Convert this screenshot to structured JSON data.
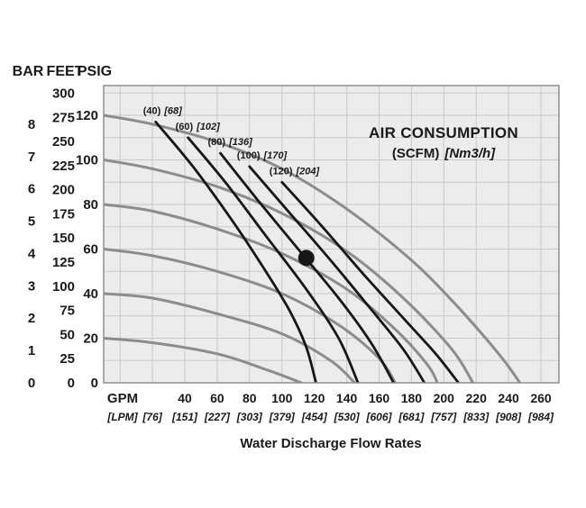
{
  "chart_data": {
    "type": "line",
    "title": "AIR CONSUMPTION",
    "subtitle_scfm": "(SCFM)",
    "subtitle_nm3h": "[Nm3/h]",
    "xlabel": "Water Discharge Flow Rates",
    "y_axes": {
      "headers": [
        "BAR",
        "FEET",
        "PSIG"
      ],
      "bar_ticks": [
        "8",
        "7",
        "6",
        "5",
        "4",
        "3",
        "2",
        "1",
        "0"
      ],
      "feet_ticks": [
        "300",
        "275",
        "250",
        "225",
        "200",
        "175",
        "150",
        "125",
        "100",
        "75",
        "50",
        "25",
        "0"
      ],
      "psig_ticks": [
        "120",
        "100",
        "80",
        "60",
        "40",
        "20",
        "0"
      ]
    },
    "x_axis": {
      "primary_unit": "GPM",
      "secondary_unit": "[LPM]",
      "gpm_ticks": [
        40,
        60,
        80,
        100,
        120,
        140,
        160,
        180,
        200,
        220,
        240,
        260
      ],
      "lpm_ticks": [
        "[76]",
        "[151]",
        "[227]",
        "[303]",
        "[379]",
        "[454]",
        "[530]",
        "[606]",
        "[681]",
        "[757]",
        "[833]",
        "[908]",
        "[984]"
      ],
      "lpm_tick_gpm_positions": [
        20,
        40,
        60,
        80,
        100,
        120,
        140,
        160,
        180,
        200,
        220,
        240,
        260
      ]
    },
    "grid": {
      "x_step_gpm": 20,
      "x_max_gpm": 260,
      "y_step_psig": 10,
      "y_max_psig": 130
    },
    "pump_curves": [
      {
        "points": [
          [
            -10,
            120
          ],
          [
            20,
            116
          ],
          [
            60,
            108
          ],
          [
            100,
            96
          ],
          [
            140,
            78
          ],
          [
            180,
            55
          ],
          [
            210,
            33
          ],
          [
            235,
            12
          ],
          [
            247,
            0
          ]
        ]
      },
      {
        "points": [
          [
            -10,
            100
          ],
          [
            20,
            96
          ],
          [
            60,
            88
          ],
          [
            100,
            76
          ],
          [
            140,
            59
          ],
          [
            175,
            38
          ],
          [
            205,
            15
          ],
          [
            218,
            0
          ]
        ]
      },
      {
        "points": [
          [
            -10,
            80
          ],
          [
            20,
            77
          ],
          [
            60,
            69
          ],
          [
            100,
            58
          ],
          [
            140,
            42
          ],
          [
            170,
            24
          ],
          [
            190,
            8
          ],
          [
            196,
            0
          ]
        ]
      },
      {
        "points": [
          [
            -10,
            60
          ],
          [
            20,
            57
          ],
          [
            60,
            50
          ],
          [
            100,
            40
          ],
          [
            135,
            26
          ],
          [
            160,
            11
          ],
          [
            170,
            0
          ]
        ]
      },
      {
        "points": [
          [
            -10,
            40
          ],
          [
            20,
            38
          ],
          [
            60,
            31
          ],
          [
            100,
            22
          ],
          [
            130,
            10
          ],
          [
            145,
            0
          ]
        ]
      },
      {
        "points": [
          [
            -10,
            20
          ],
          [
            20,
            18
          ],
          [
            60,
            13
          ],
          [
            90,
            6
          ],
          [
            112,
            0
          ]
        ]
      }
    ],
    "air_curves": [
      {
        "scfm": "(40)",
        "nm3h": "[68]",
        "points": [
          [
            22,
            117
          ],
          [
            45,
            97
          ],
          [
            70,
            72
          ],
          [
            90,
            50
          ],
          [
            105,
            32
          ],
          [
            115,
            16
          ],
          [
            121,
            0
          ]
        ]
      },
      {
        "scfm": "(60)",
        "nm3h": "[102]",
        "points": [
          [
            42,
            110
          ],
          [
            65,
            90
          ],
          [
            90,
            66
          ],
          [
            115,
            42
          ],
          [
            135,
            20
          ],
          [
            147,
            0
          ]
        ]
      },
      {
        "scfm": "(80)",
        "nm3h": "[136]",
        "points": [
          [
            62,
            103
          ],
          [
            85,
            82
          ],
          [
            110,
            60
          ],
          [
            135,
            38
          ],
          [
            155,
            18
          ],
          [
            169,
            0
          ]
        ]
      },
      {
        "scfm": "(100)",
        "nm3h": "[170]",
        "points": [
          [
            80,
            97
          ],
          [
            105,
            76
          ],
          [
            130,
            55
          ],
          [
            155,
            33
          ],
          [
            175,
            15
          ],
          [
            188,
            0
          ]
        ]
      },
      {
        "scfm": "(120)",
        "nm3h": "[204]",
        "points": [
          [
            100,
            90
          ],
          [
            125,
            70
          ],
          [
            150,
            49
          ],
          [
            175,
            29
          ],
          [
            195,
            13
          ],
          [
            209,
            0
          ]
        ]
      }
    ],
    "operating_point": {
      "gpm": 115,
      "psig": 56
    }
  },
  "colors": {
    "plot_bg": "#ececec",
    "grid": "#c9c9c9",
    "border": "#8f8f8f",
    "pump_curve": "#8c8c8c",
    "air_curve": "#171717",
    "text": "#1a1a1a"
  }
}
